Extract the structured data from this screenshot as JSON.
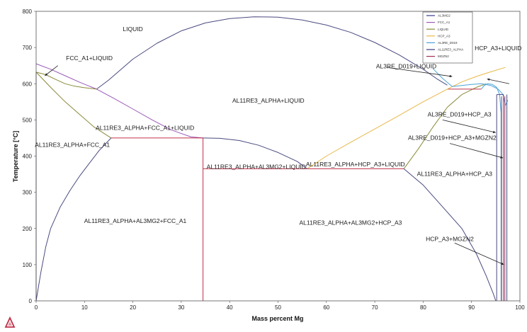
{
  "chart_data": {
    "type": "line",
    "xlabel": "Mass percent Mg",
    "ylabel": "Temperature [°C]",
    "xlim": [
      0,
      100
    ],
    "ylim": [
      0,
      800
    ],
    "xticks": [
      0,
      10,
      20,
      30,
      40,
      50,
      60,
      70,
      80,
      90,
      100
    ],
    "yticks": [
      0,
      100,
      200,
      300,
      400,
      500,
      600,
      700,
      800
    ],
    "grid": false,
    "legend_position": "top-right",
    "legend": [
      {
        "name": "AL3MG2",
        "color": "#3b3b8f"
      },
      {
        "name": "FCC_A1",
        "color": "#9b59b6"
      },
      {
        "name": "LIQUID",
        "color": "#8a8a3a"
      },
      {
        "name": "HCP_A3",
        "color": "#e8b84a"
      },
      {
        "name": "AL3RE_D019",
        "color": "#4aa3d8"
      },
      {
        "name": "AL11RE3_ALPHA",
        "color": "#3a3a7a"
      },
      {
        "name": "MGZN2",
        "color": "#a0305a"
      }
    ],
    "series": [
      {
        "color": "#4a4a80",
        "points": [
          [
            12.5,
            585
          ],
          [
            15,
            610
          ],
          [
            20,
            668
          ],
          [
            25,
            712
          ],
          [
            30,
            746
          ],
          [
            35,
            768
          ],
          [
            40,
            780
          ],
          [
            45,
            785
          ],
          [
            50,
            784
          ],
          [
            55,
            776
          ],
          [
            60,
            762
          ],
          [
            65,
            742
          ],
          [
            70,
            714
          ],
          [
            75,
            680
          ],
          [
            80,
            640
          ],
          [
            83,
            612
          ],
          [
            85,
            596
          ]
        ]
      },
      {
        "color": "#9b59b6",
        "points": [
          [
            0,
            655
          ],
          [
            3,
            640
          ],
          [
            6,
            622
          ],
          [
            9,
            604
          ],
          [
            12.5,
            585
          ],
          [
            16,
            560
          ],
          [
            20,
            530
          ],
          [
            24,
            500
          ],
          [
            28,
            472
          ],
          [
            32,
            453
          ],
          [
            34.5,
            450
          ]
        ]
      },
      {
        "color": "#8a8a3a",
        "points": [
          [
            0,
            632
          ],
          [
            2,
            625
          ],
          [
            4,
            612
          ],
          [
            6,
            600
          ],
          [
            8,
            593
          ],
          [
            10,
            589
          ],
          [
            12.5,
            585
          ]
        ]
      },
      {
        "color": "#8a8a3a",
        "points": [
          [
            0,
            632
          ],
          [
            3,
            590
          ],
          [
            6,
            550
          ],
          [
            9,
            515
          ],
          [
            12,
            480
          ],
          [
            15.5,
            450
          ]
        ]
      },
      {
        "color": "#4a4a80",
        "points": [
          [
            0,
            0
          ],
          [
            1,
            80
          ],
          [
            2,
            150
          ],
          [
            3,
            200
          ],
          [
            5,
            260
          ],
          [
            7,
            305
          ],
          [
            9,
            345
          ],
          [
            11,
            380
          ],
          [
            13,
            415
          ],
          [
            15.5,
            450
          ]
        ]
      },
      {
        "color": "#4a4a80",
        "points": [
          [
            0,
            0
          ],
          [
            0,
            632
          ]
        ]
      },
      {
        "color": "#c0304a",
        "points": [
          [
            15.5,
            450
          ],
          [
            34.5,
            450
          ]
        ]
      },
      {
        "color": "#c0304a",
        "points": [
          [
            34.5,
            0
          ],
          [
            34.5,
            450
          ]
        ]
      },
      {
        "color": "#c0304a",
        "points": [
          [
            34.5,
            365
          ],
          [
            56,
            365
          ]
        ]
      },
      {
        "color": "#4a4a80",
        "points": [
          [
            34.5,
            450
          ],
          [
            38,
            449
          ],
          [
            42,
            443
          ],
          [
            46,
            430
          ],
          [
            50,
            410
          ],
          [
            54,
            385
          ],
          [
            56,
            365
          ]
        ]
      },
      {
        "color": "#e8b84a",
        "points": [
          [
            56,
            365
          ],
          [
            60,
            400
          ],
          [
            65,
            438
          ],
          [
            70,
            475
          ],
          [
            75,
            512
          ],
          [
            80,
            550
          ],
          [
            85,
            585
          ]
        ]
      },
      {
        "color": "#c0304a",
        "points": [
          [
            56,
            365
          ],
          [
            76,
            365
          ]
        ]
      },
      {
        "color": "#8a8a3a",
        "points": [
          [
            76,
            365
          ],
          [
            79,
            420
          ],
          [
            82,
            480
          ],
          [
            85,
            535
          ],
          [
            88,
            570
          ],
          [
            91,
            590
          ],
          [
            93,
            600
          ]
        ]
      },
      {
        "color": "#4a4a80",
        "points": [
          [
            76,
            365
          ],
          [
            80,
            320
          ],
          [
            84,
            260
          ],
          [
            88,
            200
          ],
          [
            91,
            130
          ],
          [
            93,
            70
          ],
          [
            94.5,
            20
          ],
          [
            95,
            0
          ]
        ]
      },
      {
        "color": "#c0304a",
        "points": [
          [
            85,
            585
          ],
          [
            92,
            585
          ]
        ]
      },
      {
        "color": "#e8b84a",
        "points": [
          [
            85,
            585
          ],
          [
            88,
            605
          ],
          [
            91,
            620
          ],
          [
            94,
            633
          ],
          [
            97,
            645
          ]
        ]
      },
      {
        "color": "#4aa3d8",
        "points": [
          [
            82,
            642
          ],
          [
            84,
            615
          ],
          [
            86,
            592
          ],
          [
            88,
            595
          ],
          [
            90,
            598
          ],
          [
            92,
            600
          ],
          [
            94,
            595
          ],
          [
            95.5,
            585
          ],
          [
            96.5,
            570
          ],
          [
            97,
            540
          ],
          [
            97.5,
            555
          ]
        ]
      },
      {
        "color": "#4aa3d8",
        "points": [
          [
            92,
            585
          ],
          [
            92.6,
            595
          ],
          [
            93.3,
            600
          ],
          [
            94.3,
            598
          ],
          [
            95.2,
            590
          ],
          [
            95.8,
            570
          ],
          [
            96.1,
            520
          ],
          [
            96.1,
            0
          ]
        ]
      },
      {
        "color": "#4a4a80",
        "points": [
          [
            95.2,
            570
          ],
          [
            95.2,
            0
          ]
        ]
      },
      {
        "color": "#4a4a80",
        "points": [
          [
            96.6,
            570
          ],
          [
            96.6,
            0
          ]
        ]
      },
      {
        "color": "#4a4a80",
        "points": [
          [
            95.2,
            570
          ],
          [
            96.6,
            570
          ]
        ]
      },
      {
        "color": "#a0305a",
        "points": [
          [
            96.2,
            565
          ],
          [
            96.2,
            0
          ]
        ]
      },
      {
        "color": "#a0305a",
        "points": [
          [
            96.9,
            565
          ],
          [
            96.9,
            0
          ]
        ]
      },
      {
        "color": "#4a4a80",
        "points": [
          [
            97.3,
            570
          ],
          [
            97.3,
            0
          ]
        ]
      }
    ],
    "regions": [
      {
        "label": "LIQUID",
        "x": 20,
        "y": 745
      },
      {
        "label": "FCC_A1+LIQUID",
        "x": 11,
        "y": 665
      },
      {
        "label": "HCP_A3+LIQUID",
        "x": 95.5,
        "y": 692
      },
      {
        "label": "AL3RE_D019+LIQUID",
        "x": 76.5,
        "y": 643
      },
      {
        "label": "AL11RE3_ALPHA+LIQUID",
        "x": 48,
        "y": 548
      },
      {
        "label": "AL3RE_D019+HCP_A3",
        "x": 87.5,
        "y": 510
      },
      {
        "label": "AL11RE3_ALPHA+FCC_A1+LIQUID",
        "x": 22.5,
        "y": 472
      },
      {
        "label": "AL3RE_D019+HCP_A3+MGZN2",
        "x": 86,
        "y": 445
      },
      {
        "label": "AL11RE3_ALPHA+FCC_A1",
        "x": 7.5,
        "y": 425
      },
      {
        "label": "AL11RE3_ALPHA+AL3MG2+LIQUID",
        "x": 45.5,
        "y": 365
      },
      {
        "label": "AL11RE3_ALPHA+HCP_A3+LIQUID",
        "x": 66,
        "y": 372
      },
      {
        "label": "AL11RE3_ALPHA+HCP_A3",
        "x": 86.5,
        "y": 345
      },
      {
        "label": "AL11RE3_ALPHA+AL3MG2+FCC_A1",
        "x": 20.5,
        "y": 215
      },
      {
        "label": "AL11RE3_ALPHA+AL3MG2+HCP_A3",
        "x": 65,
        "y": 210
      },
      {
        "label": "HCP_A3+MGZN2",
        "x": 85.5,
        "y": 165
      }
    ],
    "arrows": [
      {
        "from": [
          4.5,
          650
        ],
        "to": [
          1.8,
          622
        ]
      },
      {
        "from": [
          97.8,
          600
        ],
        "to": [
          93.2,
          613
        ]
      },
      {
        "from": [
          72.5,
          645
        ],
        "to": [
          86,
          620
        ]
      },
      {
        "from": [
          84,
          500
        ],
        "to": [
          95,
          465
        ]
      },
      {
        "from": [
          85.5,
          435
        ],
        "to": [
          96.5,
          395
        ]
      },
      {
        "from": [
          86.5,
          160
        ],
        "to": [
          96.7,
          100
        ]
      }
    ]
  }
}
